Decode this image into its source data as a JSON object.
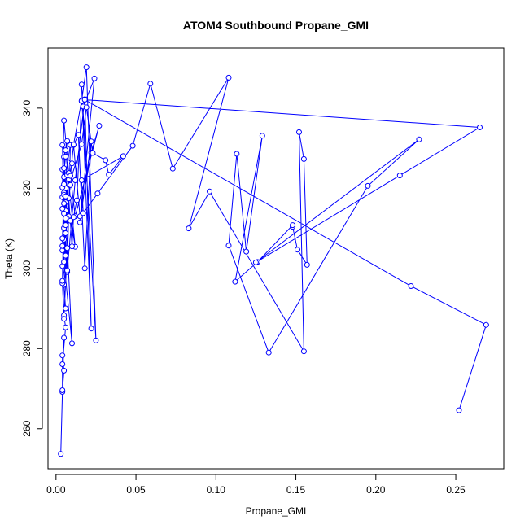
{
  "chart_data": {
    "type": "scatter",
    "title": "ATOM4 Southbound Propane_GMI",
    "xlabel": "Propane_GMI",
    "ylabel": "Theta (K)",
    "xlim": [
      -0.005,
      0.28
    ],
    "ylim": [
      250,
      355
    ],
    "x_ticks": [
      0.0,
      0.05,
      0.1,
      0.15,
      0.2,
      0.25
    ],
    "x_tick_labels": [
      "0.00",
      "0.05",
      "0.10",
      "0.15",
      "0.20",
      "0.25"
    ],
    "y_ticks": [
      260,
      280,
      300,
      320,
      340
    ],
    "y_tick_labels": [
      "260",
      "280",
      "300",
      "320",
      "340"
    ],
    "series": [
      {
        "color": "#0000ff",
        "style": "points-connected",
        "x": [
          0.003,
          0.004,
          0.004,
          0.005,
          0.004,
          0.005,
          0.004,
          0.006,
          0.005,
          0.004,
          0.006,
          0.005,
          0.007,
          0.004,
          0.005,
          0.008,
          0.006,
          0.005,
          0.007,
          0.004,
          0.009,
          0.005,
          0.006,
          0.01,
          0.004,
          0.005,
          0.012,
          0.006,
          0.004,
          0.005,
          0.008,
          0.006,
          0.004,
          0.005,
          0.006,
          0.004,
          0.005,
          0.007,
          0.004,
          0.006,
          0.005,
          0.007,
          0.004,
          0.005,
          0.008,
          0.006,
          0.009,
          0.005,
          0.006,
          0.01,
          0.004,
          0.006,
          0.005,
          0.007,
          0.009,
          0.005,
          0.006,
          0.004,
          0.005,
          0.007,
          0.012,
          0.018,
          0.022,
          0.016,
          0.025,
          0.019,
          0.016,
          0.017,
          0.024,
          0.015,
          0.022,
          0.018,
          0.014,
          0.011,
          0.015,
          0.022,
          0.027,
          0.012,
          0.009,
          0.011,
          0.016,
          0.013,
          0.011,
          0.01,
          0.008,
          0.006,
          0.016,
          0.019,
          0.023,
          0.031,
          0.033,
          0.042,
          0.016,
          0.017,
          0.026,
          0.048,
          0.059,
          0.073,
          0.108,
          0.083,
          0.096,
          0.155,
          0.152,
          0.155,
          0.157,
          0.151,
          0.148,
          0.148,
          0.126,
          0.112,
          0.129,
          0.119,
          0.113,
          0.108,
          0.133,
          0.195,
          0.227,
          0.125,
          0.215,
          0.265,
          0.018,
          0.222,
          0.269,
          0.252
        ],
        "y": [
          253.7,
          269.2,
          278.3,
          274.5,
          269.6,
          282.7,
          276.1,
          285.3,
          288.3,
          300.6,
          290.0,
          295.9,
          305.1,
          296.3,
          287.4,
          313.0,
          308.8,
          301.6,
          312.3,
          304.5,
          320.8,
          307.2,
          314.4,
          281.3,
          305.6,
          322.8,
          305.4,
          329.5,
          330.8,
          310.1,
          322.2,
          316.5,
          307.5,
          318.9,
          303.2,
          317.8,
          313.7,
          323.3,
          324.7,
          320.0,
          327.8,
          331.8,
          320.2,
          336.9,
          323.8,
          312.5,
          311.9,
          325.0,
          327.9,
          326.2,
          314.9,
          318.0,
          316.2,
          299.1,
          330.8,
          321.0,
          310.8,
          296.9,
          318.4,
          299.5,
          322.0,
          342.2,
          285.0,
          345.9,
          282.0,
          350.2,
          341.8,
          340.4,
          347.4,
          311.5,
          331.7,
          300.0,
          333.3,
          330.8,
          313.0,
          328.9,
          335.6,
          313.0,
          323.1,
          330.9,
          341.8,
          317.0,
          312.8,
          305.5,
          317.5,
          318.0,
          331.0,
          340.2,
          328.8,
          327.0,
          323.4,
          328.0,
          322.0,
          313.8,
          318.7,
          330.6,
          346.1,
          324.9,
          347.6,
          310.0,
          319.2,
          279.3,
          334.0,
          327.3,
          300.9,
          304.7,
          310.4,
          310.8,
          301.6,
          296.7,
          333.1,
          304.2,
          328.6,
          305.7,
          279.0,
          320.6,
          332.2,
          301.5,
          323.2,
          335.2,
          342.1,
          295.6,
          285.9,
          264.6
        ]
      }
    ]
  }
}
